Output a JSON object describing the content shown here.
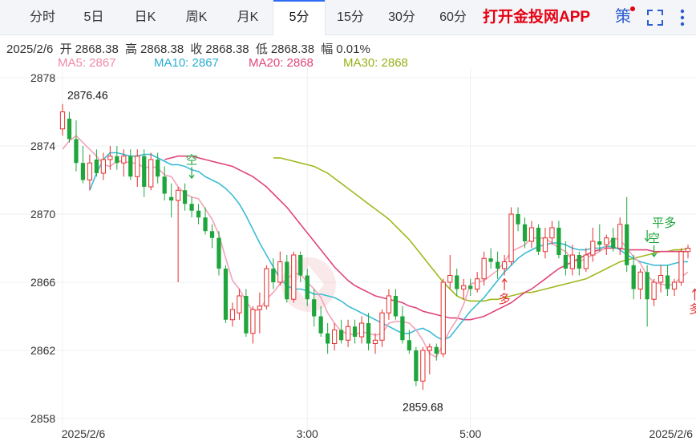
{
  "tabs": [
    {
      "label": "分时",
      "active": false
    },
    {
      "label": "5日",
      "active": false
    },
    {
      "label": "日K",
      "active": false
    },
    {
      "label": "周K",
      "active": false
    },
    {
      "label": "月K",
      "active": false
    },
    {
      "label": "5分",
      "active": true
    },
    {
      "label": "15分",
      "active": false
    },
    {
      "label": "30分",
      "active": false
    },
    {
      "label": "60分",
      "active": false
    }
  ],
  "promo": "打开金投网APP",
  "strategy_label": "策",
  "icons": [
    "strategy-icon",
    "fullscreen-icon",
    "more-icon"
  ],
  "quote": {
    "date": "2025/2/6",
    "open_label": "开",
    "open": "2868.38",
    "high_label": "高",
    "high": "2868.38",
    "close_label": "收",
    "close": "2868.38",
    "low_label": "低",
    "low": "2868.38",
    "change_label": "幅",
    "change": "0.01%"
  },
  "ma_legend": [
    {
      "label": "MA5: 2867",
      "color": "#f4a3b8"
    },
    {
      "label": "MA10: 2867",
      "color": "#3bbcd6"
    },
    {
      "label": "MA20: 2868",
      "color": "#e0457b"
    },
    {
      "label": "MA30: 2868",
      "color": "#a0b81e"
    }
  ],
  "colors": {
    "up": "#e52e2e",
    "down": "#1ea63c"
  },
  "chart_data": {
    "type": "candlestick",
    "y_ticks": [
      "2878",
      "2874",
      "2870",
      "2866",
      "2862",
      "2858"
    ],
    "y_tick_values": [
      2878,
      2874,
      2870,
      2866,
      2862,
      2858
    ],
    "ylim": [
      2858,
      2878.4
    ],
    "x_ticks": [
      {
        "label": "2025/2/6",
        "index": 0
      },
      {
        "label": "3:00",
        "index": 36
      },
      {
        "label": "5:00",
        "index": 60
      },
      {
        "label": "2025/2/6",
        "index": 94
      }
    ],
    "annotations": {
      "high_label": "2876.46",
      "high_index": 0,
      "high_value": 2876.46,
      "low_label": "2859.68",
      "low_index": 53,
      "low_value": 2859.68
    },
    "signals": [
      {
        "text": "空",
        "index": 19,
        "value": 2872.2,
        "kind": "sell"
      },
      {
        "text": "多",
        "index": 65,
        "value": 2866.2,
        "kind": "buy"
      },
      {
        "text": "平多",
        "index": 86,
        "value": 2868.5,
        "kind": "sell"
      },
      {
        "text": "空",
        "index": 87,
        "value": 2867.6,
        "kind": "sell"
      },
      {
        "text": "多",
        "index": 93,
        "value": 2865.6,
        "kind": "buy"
      }
    ],
    "ohlc": [
      [
        2875.0,
        2876.46,
        2874.6,
        2876.0
      ],
      [
        2875.6,
        2876.0,
        2874.2,
        2874.4
      ],
      [
        2874.4,
        2875.5,
        2872.5,
        2873.0
      ],
      [
        2873.0,
        2874.0,
        2871.8,
        2872.0
      ],
      [
        2872.0,
        2873.5,
        2871.4,
        2873.0
      ],
      [
        2873.2,
        2873.8,
        2872.2,
        2872.4
      ],
      [
        2872.4,
        2873.6,
        2872.0,
        2873.2
      ],
      [
        2873.2,
        2874.0,
        2872.6,
        2873.4
      ],
      [
        2873.4,
        2874.0,
        2872.6,
        2873.0
      ],
      [
        2873.0,
        2873.8,
        2872.2,
        2873.4
      ],
      [
        2873.4,
        2873.8,
        2872.0,
        2872.2
      ],
      [
        2872.2,
        2873.8,
        2871.6,
        2873.4
      ],
      [
        2873.4,
        2873.8,
        2871.0,
        2871.6
      ],
      [
        2871.6,
        2873.6,
        2871.4,
        2873.2
      ],
      [
        2873.2,
        2873.6,
        2871.8,
        2872.2
      ],
      [
        2872.2,
        2872.8,
        2870.8,
        2871.2
      ],
      [
        2871.0,
        2871.8,
        2869.8,
        2870.8
      ],
      [
        2870.8,
        2871.6,
        2866.0,
        2871.4
      ],
      [
        2871.4,
        2871.8,
        2870.2,
        2870.6
      ],
      [
        2870.6,
        2871.0,
        2869.8,
        2870.2
      ],
      [
        2870.2,
        2870.6,
        2869.4,
        2869.8
      ],
      [
        2869.8,
        2870.4,
        2868.8,
        2869.0
      ],
      [
        2869.0,
        2869.4,
        2868.0,
        2868.6
      ],
      [
        2868.6,
        2869.0,
        2866.4,
        2866.8
      ],
      [
        2866.8,
        2867.0,
        2863.6,
        2863.8
      ],
      [
        2863.8,
        2864.8,
        2863.4,
        2864.4
      ],
      [
        2864.2,
        2865.6,
        2863.8,
        2865.2
      ],
      [
        2865.2,
        2865.6,
        2862.8,
        2863.0
      ],
      [
        2863.0,
        2864.6,
        2862.4,
        2864.4
      ],
      [
        2864.4,
        2865.4,
        2863.0,
        2864.6
      ],
      [
        2864.6,
        2867.0,
        2864.4,
        2866.8
      ],
      [
        2866.8,
        2867.4,
        2865.6,
        2866.0
      ],
      [
        2866.0,
        2867.8,
        2865.8,
        2867.2
      ],
      [
        2867.2,
        2867.6,
        2864.8,
        2865.0
      ],
      [
        2865.0,
        2867.8,
        2864.8,
        2867.6
      ],
      [
        2867.6,
        2867.8,
        2866.0,
        2866.4
      ],
      [
        2866.4,
        2866.8,
        2864.6,
        2865.0
      ],
      [
        2865.0,
        2865.6,
        2863.4,
        2864.0
      ],
      [
        2864.0,
        2864.6,
        2862.8,
        2863.0
      ],
      [
        2863.0,
        2863.6,
        2861.8,
        2862.4
      ],
      [
        2862.4,
        2863.6,
        2862.0,
        2863.2
      ],
      [
        2863.2,
        2863.8,
        2862.4,
        2862.6
      ],
      [
        2862.6,
        2863.8,
        2862.2,
        2863.4
      ],
      [
        2863.4,
        2863.8,
        2862.4,
        2862.8
      ],
      [
        2862.8,
        2864.0,
        2862.4,
        2863.6
      ],
      [
        2863.6,
        2864.2,
        2862.0,
        2862.4
      ],
      [
        2862.4,
        2863.0,
        2861.8,
        2862.6
      ],
      [
        2862.6,
        2864.4,
        2862.2,
        2864.2
      ],
      [
        2864.2,
        2865.6,
        2863.8,
        2865.2
      ],
      [
        2865.2,
        2865.6,
        2863.8,
        2864.0
      ],
      [
        2864.0,
        2864.6,
        2862.4,
        2862.6
      ],
      [
        2862.6,
        2863.2,
        2861.8,
        2862.0
      ],
      [
        2862.0,
        2862.2,
        2859.9,
        2860.2
      ],
      [
        2860.2,
        2862.2,
        2859.68,
        2862.0
      ],
      [
        2862.0,
        2862.4,
        2860.6,
        2862.2
      ],
      [
        2862.2,
        2862.4,
        2861.4,
        2861.8
      ],
      [
        2861.8,
        2866.2,
        2861.6,
        2866.0
      ],
      [
        2866.0,
        2867.6,
        2865.6,
        2866.4
      ],
      [
        2866.4,
        2866.8,
        2865.2,
        2865.6
      ],
      [
        2865.6,
        2866.2,
        2865.0,
        2865.8
      ],
      [
        2865.8,
        2866.2,
        2865.2,
        2865.6
      ],
      [
        2865.6,
        2866.6,
        2865.4,
        2866.2
      ],
      [
        2866.2,
        2867.8,
        2865.8,
        2867.4
      ],
      [
        2867.4,
        2868.0,
        2866.8,
        2867.2
      ],
      [
        2867.2,
        2867.8,
        2866.2,
        2866.8
      ],
      [
        2866.8,
        2867.6,
        2866.4,
        2867.2
      ],
      [
        2867.2,
        2870.4,
        2867.0,
        2870.0
      ],
      [
        2870.0,
        2870.4,
        2869.0,
        2869.4
      ],
      [
        2869.4,
        2869.8,
        2868.0,
        2868.4
      ],
      [
        2868.4,
        2869.6,
        2868.0,
        2869.2
      ],
      [
        2869.2,
        2869.4,
        2867.6,
        2867.8
      ],
      [
        2867.8,
        2869.2,
        2867.4,
        2868.6
      ],
      [
        2868.6,
        2869.6,
        2868.2,
        2869.2
      ],
      [
        2869.2,
        2869.6,
        2867.4,
        2867.6
      ],
      [
        2867.6,
        2868.4,
        2866.4,
        2866.8
      ],
      [
        2866.8,
        2868.2,
        2866.4,
        2867.6
      ],
      [
        2867.6,
        2867.8,
        2866.4,
        2866.8
      ],
      [
        2866.8,
        2868.0,
        2866.6,
        2867.6
      ],
      [
        2867.6,
        2869.2,
        2867.2,
        2868.4
      ],
      [
        2868.4,
        2869.4,
        2867.8,
        2868.2
      ],
      [
        2868.2,
        2868.8,
        2867.6,
        2868.6
      ],
      [
        2868.6,
        2869.2,
        2867.8,
        2868.0
      ],
      [
        2868.0,
        2869.8,
        2867.6,
        2869.4
      ],
      [
        2869.4,
        2871.0,
        2866.6,
        2867.0
      ],
      [
        2867.0,
        2867.6,
        2865.0,
        2865.6
      ],
      [
        2865.6,
        2866.8,
        2865.0,
        2866.6
      ],
      [
        2866.6,
        2867.0,
        2863.4,
        2865.0
      ],
      [
        2865.0,
        2866.2,
        2864.6,
        2866.0
      ],
      [
        2866.0,
        2867.0,
        2865.4,
        2866.4
      ],
      [
        2866.4,
        2867.0,
        2865.2,
        2865.6
      ],
      [
        2865.6,
        2866.2,
        2865.2,
        2866.0
      ],
      [
        2866.0,
        2868.0,
        2865.8,
        2867.8
      ],
      [
        2867.8,
        2868.2,
        2867.4,
        2868.0
      ]
    ],
    "ma5": [
      2873.8,
      2874.3,
      2874.6,
      2874.2,
      2873.8,
      2873.4,
      2872.9,
      2872.8,
      2873.1,
      2873.1,
      2873.0,
      2873.0,
      2872.7,
      2872.8,
      2872.7,
      2872.3,
      2872.2,
      2871.6,
      2871.2,
      2871.0,
      2870.9,
      2870.3,
      2869.7,
      2868.8,
      2867.4,
      2866.1,
      2865.6,
      2864.9,
      2864.3,
      2864.4,
      2865.0,
      2865.4,
      2865.9,
      2866.2,
      2866.5,
      2866.5,
      2866.0,
      2865.6,
      2865.1,
      2864.2,
      2863.6,
      2863.1,
      2863.0,
      2862.9,
      2863.1,
      2863.0,
      2862.9,
      2863.0,
      2863.6,
      2863.7,
      2863.7,
      2863.6,
      2863.2,
      2862.6,
      2861.8,
      2861.6,
      2862.4,
      2863.2,
      2863.8,
      2864.7,
      2865.9,
      2866.0,
      2866.1,
      2866.4,
      2866.7,
      2867.2,
      2867.8,
      2868.0,
      2868.2,
      2868.6,
      2868.6,
      2868.6,
      2868.3,
      2868.0,
      2867.8,
      2867.3,
      2867.2,
      2867.4,
      2867.6,
      2867.8,
      2868.1,
      2868.6,
      2868.5,
      2868.0,
      2867.5,
      2867.1,
      2866.4,
      2866.0,
      2865.9,
      2865.8,
      2865.9,
      2866.3,
      2866.6
    ],
    "ma10": [
      2871.4,
      2872.4,
      2873.2,
      2873.6,
      2873.6,
      2873.5,
      2873.4,
      2873.4,
      2873.5,
      2873.5,
      2873.3,
      2873.1,
      2872.9,
      2872.9,
      2872.8,
      2872.6,
      2872.5,
      2872.2,
      2872.0,
      2871.8,
      2871.5,
      2871.1,
      2870.6,
      2869.9,
      2869.1,
      2868.3,
      2867.6,
      2866.9,
      2866.2,
      2865.8,
      2865.6,
      2865.6,
      2865.5,
      2865.3,
      2865.3,
      2865.2,
      2865.1,
      2864.9,
      2864.6,
      2864.4,
      2864.2,
      2864.0,
      2863.8,
      2863.6,
      2863.4,
      2863.2,
      2863.0,
      2863.0,
      2863.2,
      2863.3,
      2863.1,
      2862.8,
      2862.6,
      2862.8,
      2863.3,
      2863.8,
      2864.3,
      2864.7,
      2865.1,
      2865.6,
      2866.1,
      2866.6,
      2867.0,
      2867.4,
      2867.7,
      2867.9,
      2868.1,
      2868.2,
      2868.3,
      2868.3,
      2868.2,
      2868.0,
      2867.9,
      2867.9,
      2868.0,
      2868.0,
      2868.1,
      2868.1,
      2867.9,
      2867.6,
      2867.4,
      2867.2,
      2867.1,
      2867.0,
      2867.0,
      2867.0,
      2867.1,
      2867.2,
      2867.2
    ],
    "ma20": [
      2873.2,
      2873.3,
      2873.4,
      2873.4,
      2873.4,
      2873.3,
      2873.2,
      2873.1,
      2873.0,
      2872.9,
      2872.8,
      2872.6,
      2872.4,
      2872.2,
      2871.9,
      2871.6,
      2871.2,
      2870.8,
      2870.4,
      2869.9,
      2869.4,
      2868.9,
      2868.4,
      2867.9,
      2867.4,
      2866.9,
      2866.5,
      2866.1,
      2865.8,
      2865.6,
      2865.4,
      2865.2,
      2865.1,
      2865.0,
      2864.9,
      2864.8,
      2864.6,
      2864.5,
      2864.3,
      2864.2,
      2864.1,
      2864.0,
      2863.9,
      2863.9,
      2863.8,
      2863.8,
      2863.9,
      2864.0,
      2864.2,
      2864.4,
      2864.6,
      2864.8,
      2865.1,
      2865.4,
      2865.6,
      2865.9,
      2866.2,
      2866.5,
      2866.8,
      2867.0,
      2867.2,
      2867.4,
      2867.6,
      2867.8,
      2867.9,
      2868.0,
      2868.0,
      2868.0,
      2867.9,
      2867.9,
      2867.9,
      2867.9,
      2867.8,
      2867.8,
      2867.8,
      2867.8,
      2867.8,
      2867.8
    ],
    "ma30": [
      2873.3,
      2873.3,
      2873.2,
      2873.1,
      2873.0,
      2872.9,
      2872.8,
      2872.6,
      2872.4,
      2872.1,
      2871.8,
      2871.5,
      2871.2,
      2870.9,
      2870.6,
      2870.3,
      2870.0,
      2869.7,
      2869.3,
      2868.9,
      2868.5,
      2868.0,
      2867.5,
      2867.0,
      2866.5,
      2866.0,
      2865.6,
      2865.2,
      2865.0,
      2864.9,
      2864.9,
      2864.9,
      2865.0,
      2865.0,
      2865.1,
      2865.2,
      2865.3,
      2865.4,
      2865.4,
      2865.5,
      2865.6,
      2865.7,
      2865.8,
      2865.9,
      2866.0,
      2866.1,
      2866.2,
      2866.4,
      2866.6,
      2866.8,
      2867.0,
      2867.2,
      2867.3,
      2867.4,
      2867.5,
      2867.6,
      2867.7,
      2867.8,
      2867.8,
      2867.9,
      2867.9,
      2868.0
    ]
  }
}
